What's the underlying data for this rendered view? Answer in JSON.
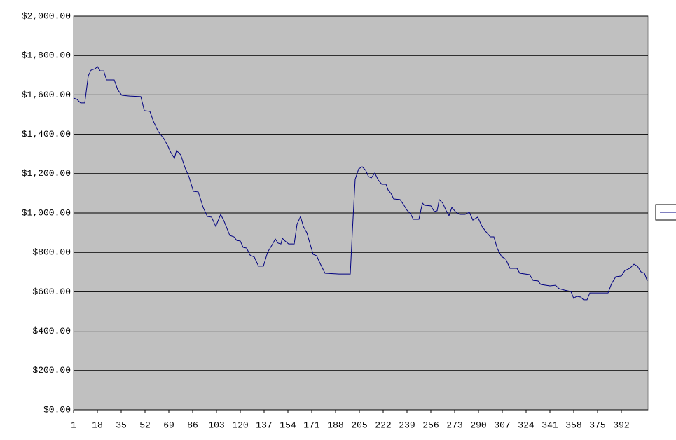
{
  "chart_data": {
    "type": "line",
    "xlim": [
      1,
      411
    ],
    "xticks": [
      1,
      18,
      35,
      52,
      69,
      86,
      103,
      120,
      137,
      154,
      171,
      188,
      205,
      222,
      239,
      256,
      273,
      290,
      307,
      324,
      341,
      358,
      375,
      392
    ],
    "ylim": [
      0,
      2000
    ],
    "yticks": [
      {
        "value": 0,
        "label": "$0.00"
      },
      {
        "value": 200,
        "label": "$200.00"
      },
      {
        "value": 400,
        "label": "$400.00"
      },
      {
        "value": 600,
        "label": "$600.00"
      },
      {
        "value": 800,
        "label": "$800.00"
      },
      {
        "value": 1000,
        "label": "$1,000.00"
      },
      {
        "value": 1200,
        "label": "$1,200.00"
      },
      {
        "value": 1400,
        "label": "$1,400.00"
      },
      {
        "value": 1600,
        "label": "$1,600.00"
      },
      {
        "value": 1800,
        "label": "$1,800.00"
      },
      {
        "value": 2000,
        "label": "$2,000.00"
      }
    ],
    "grid": true,
    "series": [
      {
        "color": "#000080",
        "x": [
          1,
          3.5,
          6,
          9,
          11.5,
          13.5,
          16.5,
          18,
          20,
          22.5,
          24.5,
          30,
          32.5,
          35.5,
          41,
          49,
          51.5,
          55.5,
          58,
          61.5,
          65.5,
          68,
          70.5,
          73,
          74.5,
          77.5,
          80.5,
          83.5,
          86.5,
          90,
          93.5,
          96.5,
          99.5,
          102.5,
          106,
          108.5,
          112.5,
          115.5,
          117.5,
          120,
          122,
          124.5,
          127,
          130,
          133,
          136.5,
          139.5,
          142.5,
          145,
          147,
          149,
          150,
          151.5,
          154.5,
          158.5,
          160.5,
          163,
          165,
          167.5,
          169.5,
          172,
          174.5,
          176.5,
          178.5,
          180.5,
          190.5,
          198.5,
          200,
          202,
          204.5,
          207,
          209.5,
          211.5,
          213.5,
          216,
          218.5,
          221,
          224,
          225.5,
          227.5,
          229.5,
          234,
          236.5,
          239,
          241.5,
          243.5,
          247.5,
          250,
          251.5,
          256,
          258.5,
          260.5,
          262,
          264.5,
          267,
          269,
          271,
          273.5,
          276.5,
          280.5,
          283.5,
          286,
          289.5,
          292.5,
          295.5,
          298.5,
          301,
          303.5,
          306.5,
          309.5,
          312.5,
          317.5,
          319.5,
          326.5,
          329,
          332.5,
          334.5,
          341,
          345,
          347.5,
          351,
          356,
          358,
          360,
          363,
          365,
          367.5,
          369.5,
          382.5,
          385,
          388,
          392,
          394.5,
          398,
          401,
          403.5,
          406,
          408.5,
          410.5
        ],
        "values": [
          1584,
          1577,
          1559,
          1559,
          1697,
          1726,
          1733,
          1744,
          1722,
          1722,
          1676,
          1676,
          1626,
          1598,
          1594,
          1591,
          1520,
          1516,
          1466,
          1413,
          1377,
          1345,
          1306,
          1278,
          1317,
          1295,
          1231,
          1181,
          1110,
          1107,
          1028,
          982,
          979,
          932,
          993,
          957,
          886,
          879,
          861,
          858,
          826,
          822,
          786,
          776,
          730,
          730,
          801,
          836,
          868,
          847,
          843,
          872,
          861,
          843,
          843,
          943,
          982,
          932,
          900,
          851,
          790,
          783,
          751,
          722,
          694,
          690,
          690,
          907,
          1171,
          1224,
          1235,
          1217,
          1185,
          1178,
          1203,
          1167,
          1146,
          1146,
          1117,
          1100,
          1071,
          1068,
          1043,
          1014,
          996,
          968,
          968,
          1050,
          1039,
          1036,
          1007,
          1011,
          1068,
          1050,
          1011,
          986,
          1028,
          1007,
          993,
          993,
          1004,
          964,
          979,
          932,
          904,
          879,
          879,
          819,
          779,
          765,
          719,
          719,
          694,
          687,
          658,
          655,
          637,
          630,
          633,
          616,
          609,
          601,
          566,
          577,
          573,
          559,
          559,
          594,
          594,
          641,
          676,
          680,
          708,
          719,
          740,
          730,
          701,
          694,
          655
        ]
      }
    ]
  }
}
